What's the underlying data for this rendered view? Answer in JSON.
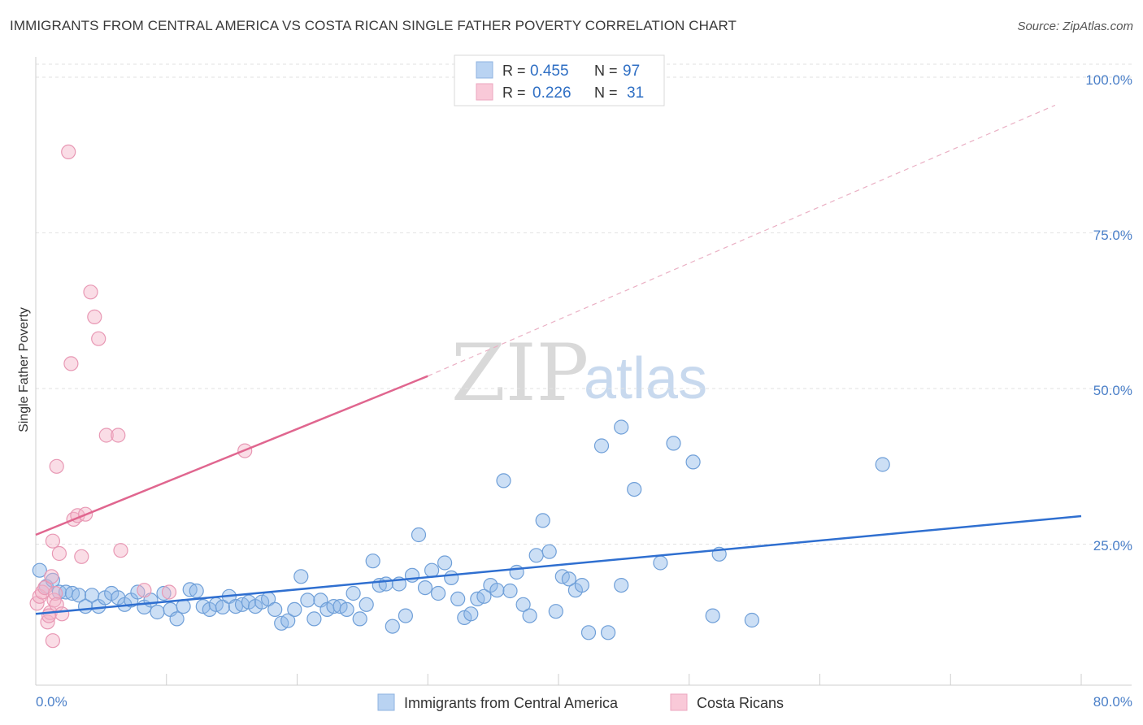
{
  "title": "IMMIGRANTS FROM CENTRAL AMERICA VS COSTA RICAN SINGLE FATHER POVERTY CORRELATION CHART",
  "source": "Source: ZipAtlas.com",
  "watermark": {
    "part1": "ZIP",
    "part2": "atlas"
  },
  "chart_data": {
    "type": "scatter",
    "xlabel": "",
    "ylabel": "Single Father Poverty",
    "xlim": [
      0,
      80
    ],
    "ylim": [
      0,
      105
    ],
    "x_tick_labels": {
      "min": "0.0%",
      "max": "80.0%"
    },
    "y_ticks": [
      {
        "value": 25,
        "label": "25.0%"
      },
      {
        "value": 50,
        "label": "50.0%"
      },
      {
        "value": 75,
        "label": "75.0%"
      },
      {
        "value": 100,
        "label": "100.0%"
      }
    ],
    "legend": {
      "r_label": "R =",
      "n_label": "N =",
      "entries": [
        {
          "r": "0.455",
          "n": "97"
        },
        {
          "r": "0.226",
          "n": "31"
        }
      ]
    },
    "series": [
      {
        "name": "Immigrants from Central America",
        "color": "#8fb8e8",
        "stroke": "#6f9fd8",
        "trend": {
          "x0": 0,
          "y0": 13.8,
          "x1": 80,
          "y1": 29.5,
          "color": "#2f6fd0"
        },
        "points": [
          [
            0.3,
            20.8
          ],
          [
            0.8,
            18.2
          ],
          [
            1.3,
            19.2
          ],
          [
            1.8,
            17.3
          ],
          [
            2.3,
            17.3
          ],
          [
            2.8,
            17.1
          ],
          [
            3.3,
            16.8
          ],
          [
            3.8,
            15.0
          ],
          [
            4.3,
            16.8
          ],
          [
            4.8,
            15.0
          ],
          [
            5.3,
            16.4
          ],
          [
            5.8,
            17.1
          ],
          [
            6.3,
            16.4
          ],
          [
            6.8,
            15.3
          ],
          [
            7.3,
            16.0
          ],
          [
            7.8,
            17.3
          ],
          [
            8.3,
            14.9
          ],
          [
            8.8,
            16.0
          ],
          [
            9.3,
            14.1
          ],
          [
            9.8,
            17.1
          ],
          [
            10.3,
            14.5
          ],
          [
            10.8,
            13.0
          ],
          [
            11.3,
            15.0
          ],
          [
            11.8,
            17.7
          ],
          [
            12.3,
            17.5
          ],
          [
            12.8,
            15.0
          ],
          [
            13.3,
            14.5
          ],
          [
            13.8,
            15.3
          ],
          [
            14.3,
            14.9
          ],
          [
            14.8,
            16.6
          ],
          [
            15.3,
            15.0
          ],
          [
            15.8,
            15.3
          ],
          [
            16.3,
            15.7
          ],
          [
            16.8,
            15.0
          ],
          [
            17.3,
            15.7
          ],
          [
            17.8,
            16.2
          ],
          [
            18.3,
            14.5
          ],
          [
            18.8,
            12.3
          ],
          [
            19.3,
            12.7
          ],
          [
            19.8,
            14.5
          ],
          [
            20.3,
            19.8
          ],
          [
            20.8,
            16.0
          ],
          [
            21.3,
            13.0
          ],
          [
            21.8,
            16.0
          ],
          [
            22.3,
            14.5
          ],
          [
            22.8,
            15.0
          ],
          [
            23.3,
            15.0
          ],
          [
            23.8,
            14.5
          ],
          [
            24.3,
            17.1
          ],
          [
            24.8,
            13.0
          ],
          [
            25.3,
            15.3
          ],
          [
            25.8,
            22.3
          ],
          [
            26.3,
            18.4
          ],
          [
            26.8,
            18.6
          ],
          [
            27.3,
            11.8
          ],
          [
            27.8,
            18.6
          ],
          [
            28.3,
            13.5
          ],
          [
            28.8,
            20.0
          ],
          [
            29.3,
            26.5
          ],
          [
            29.8,
            18.0
          ],
          [
            30.3,
            20.8
          ],
          [
            30.8,
            17.1
          ],
          [
            31.3,
            22.0
          ],
          [
            31.8,
            19.6
          ],
          [
            32.3,
            16.2
          ],
          [
            32.8,
            13.2
          ],
          [
            33.3,
            13.8
          ],
          [
            33.8,
            16.2
          ],
          [
            34.3,
            16.6
          ],
          [
            34.8,
            18.4
          ],
          [
            35.3,
            17.6
          ],
          [
            35.8,
            35.2
          ],
          [
            36.3,
            17.5
          ],
          [
            36.8,
            20.5
          ],
          [
            37.3,
            15.3
          ],
          [
            37.8,
            13.5
          ],
          [
            38.3,
            23.2
          ],
          [
            38.8,
            28.8
          ],
          [
            39.3,
            23.8
          ],
          [
            39.8,
            14.2
          ],
          [
            40.3,
            19.8
          ],
          [
            40.8,
            19.4
          ],
          [
            41.3,
            17.6
          ],
          [
            41.8,
            18.4
          ],
          [
            42.3,
            10.8
          ],
          [
            43.3,
            40.8
          ],
          [
            43.8,
            10.8
          ],
          [
            44.8,
            18.4
          ],
          [
            44.8,
            43.8
          ],
          [
            45.8,
            33.8
          ],
          [
            47.8,
            22.0
          ],
          [
            48.8,
            41.2
          ],
          [
            50.3,
            38.2
          ],
          [
            52.3,
            23.4
          ],
          [
            51.8,
            13.5
          ],
          [
            54.8,
            12.8
          ],
          [
            64.8,
            37.8
          ]
        ]
      },
      {
        "name": "Costa Ricans",
        "color": "#f4b3c8",
        "stroke": "#e898b4",
        "trend": {
          "x0": 0,
          "y0": 26.5,
          "x1": 30.0,
          "y1": 52.0,
          "dash_to_x": 78,
          "dash_to_y": 95.5,
          "color": "#e0668f"
        },
        "points": [
          [
            0.1,
            15.5
          ],
          [
            0.3,
            16.6
          ],
          [
            0.5,
            17.3
          ],
          [
            0.7,
            18.0
          ],
          [
            0.9,
            12.5
          ],
          [
            1.1,
            14.0
          ],
          [
            1.2,
            19.8
          ],
          [
            1.3,
            9.5
          ],
          [
            1.4,
            16.0
          ],
          [
            1.5,
            17.1
          ],
          [
            1.6,
            15.3
          ],
          [
            1.8,
            23.5
          ],
          [
            2.0,
            13.8
          ],
          [
            2.5,
            88.0
          ],
          [
            2.7,
            54.0
          ],
          [
            2.9,
            29.0
          ],
          [
            3.2,
            29.6
          ],
          [
            3.5,
            23.0
          ],
          [
            3.8,
            29.8
          ],
          [
            4.2,
            65.5
          ],
          [
            4.5,
            61.5
          ],
          [
            4.8,
            58.0
          ],
          [
            5.4,
            42.5
          ],
          [
            6.3,
            42.5
          ],
          [
            6.5,
            24.0
          ],
          [
            8.3,
            17.6
          ],
          [
            10.2,
            17.3
          ],
          [
            16.0,
            40.0
          ],
          [
            1.6,
            37.5
          ],
          [
            1.3,
            25.5
          ],
          [
            1.0,
            13.5
          ]
        ]
      }
    ]
  }
}
